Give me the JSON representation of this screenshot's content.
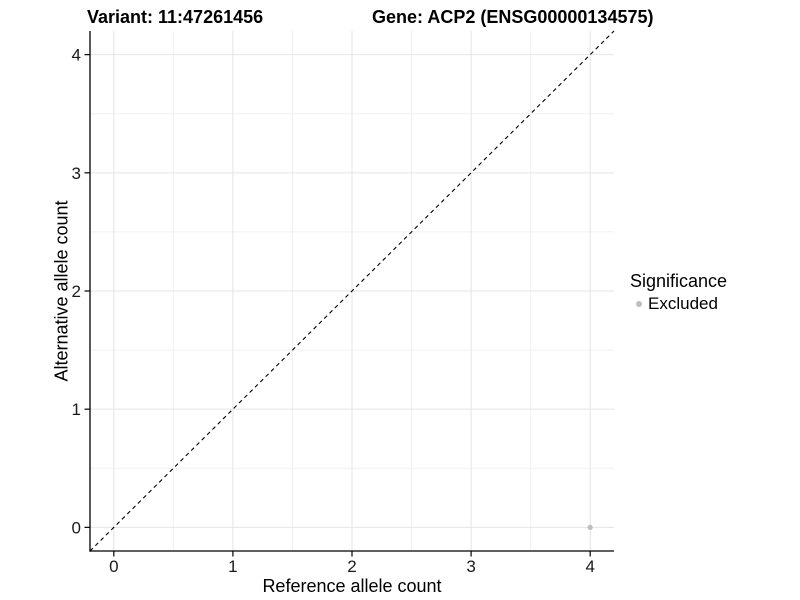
{
  "chart_data": {
    "type": "scatter",
    "title_left": "Variant: 11:47261456",
    "title_right": "Gene: ACP2 (ENSG00000134575)",
    "xlabel": "Reference allele count",
    "ylabel": "Alternative allele count",
    "xlim": [
      -0.2,
      4.2
    ],
    "ylim": [
      -0.2,
      4.2
    ],
    "xticks": [
      0,
      1,
      2,
      3,
      4
    ],
    "yticks": [
      0,
      1,
      2,
      3,
      4
    ],
    "minor_xticks": [
      0.5,
      1.5,
      2.5,
      3.5
    ],
    "minor_yticks": [
      0.5,
      1.5,
      2.5,
      3.5
    ],
    "grid": true,
    "identity_line": {
      "from": [
        -0.2,
        -0.2
      ],
      "to": [
        4.2,
        4.2
      ],
      "style": "dashed",
      "color": "#000000"
    },
    "series": [
      {
        "name": "Excluded",
        "color": "#bebebe",
        "point_radius": 2.6,
        "points": [
          [
            4,
            0
          ]
        ]
      }
    ],
    "legend": {
      "title": "Significance",
      "position": "right",
      "items": [
        {
          "label": "Excluded",
          "color": "#bebebe"
        }
      ]
    }
  },
  "colors": {
    "background": "#ffffff",
    "grid_major": "#e4e4e4",
    "grid_minor": "#f0f0f0",
    "axis_line": "#000000",
    "tick_label": "#1a1a1a"
  }
}
